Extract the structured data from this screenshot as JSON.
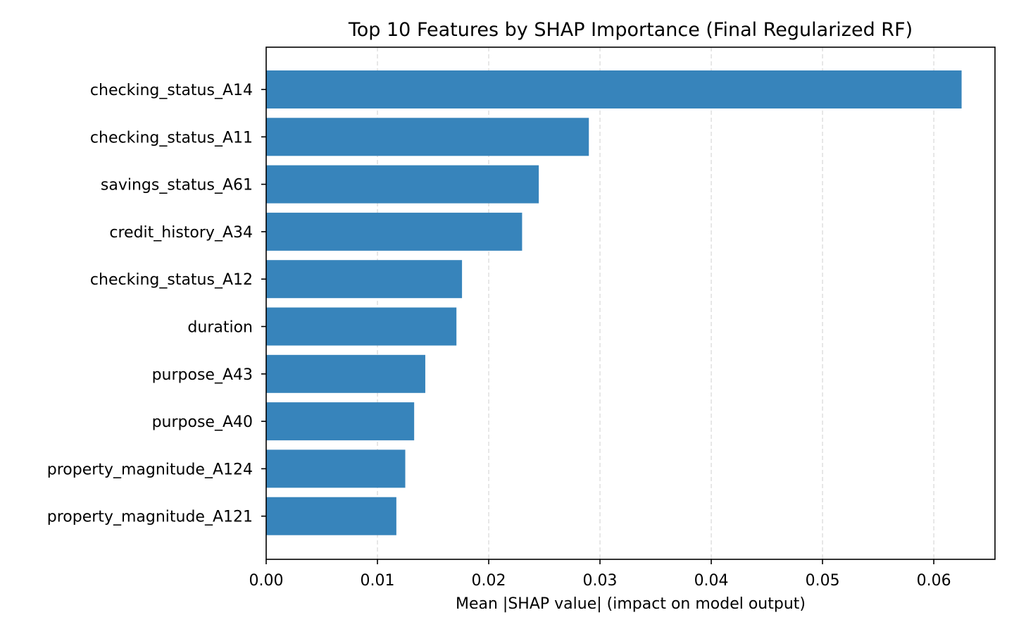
{
  "chart_data": {
    "type": "bar",
    "orientation": "horizontal",
    "title": "Top 10 Features by SHAP Importance (Final Regularized RF)",
    "xlabel": "Mean |SHAP value| (impact on model output)",
    "ylabel": "",
    "categories": [
      "checking_status_A14",
      "checking_status_A11",
      "savings_status_A61",
      "credit_history_A34",
      "checking_status_A12",
      "duration",
      "purpose_A43",
      "purpose_A40",
      "property_magnitude_A124",
      "property_magnitude_A121"
    ],
    "values": [
      0.0625,
      0.029,
      0.0245,
      0.023,
      0.0176,
      0.0171,
      0.0143,
      0.0133,
      0.0125,
      0.0117
    ],
    "xlim": [
      0.0,
      0.0655
    ],
    "xticks": [
      0.0,
      0.01,
      0.02,
      0.03,
      0.04,
      0.05,
      0.06
    ],
    "xtick_labels": [
      "0.00",
      "0.01",
      "0.02",
      "0.03",
      "0.04",
      "0.05",
      "0.06"
    ],
    "grid": {
      "x": true,
      "y": false,
      "style": "dashed"
    },
    "legend": "none",
    "bar_color": "#3784bb"
  }
}
